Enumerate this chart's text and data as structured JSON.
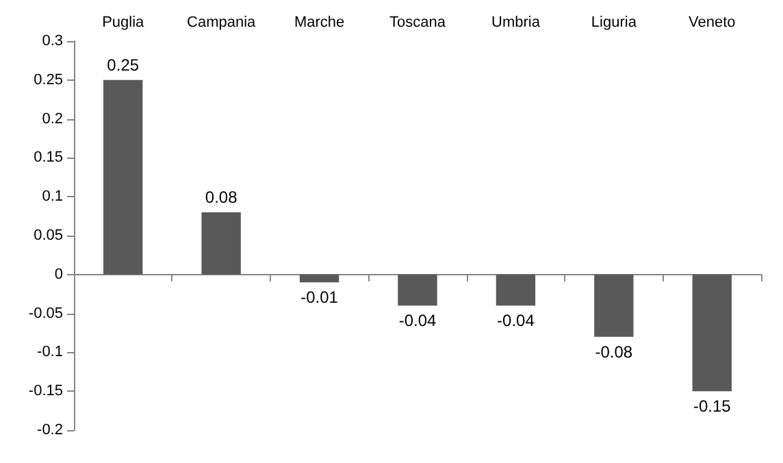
{
  "chart_data": {
    "type": "bar",
    "categories": [
      "Puglia",
      "Campania",
      "Marche",
      "Toscana",
      "Umbria",
      "Liguria",
      "Veneto"
    ],
    "values": [
      0.25,
      0.08,
      -0.01,
      -0.04,
      -0.04,
      -0.08,
      -0.15
    ],
    "color": "#595959",
    "ylim": [
      -0.2,
      0.3
    ],
    "yticks": [
      -0.2,
      -0.15,
      -0.1,
      -0.05,
      0,
      0.05,
      0.1,
      0.15,
      0.2,
      0.25,
      0.3
    ],
    "data_labels": true
  }
}
